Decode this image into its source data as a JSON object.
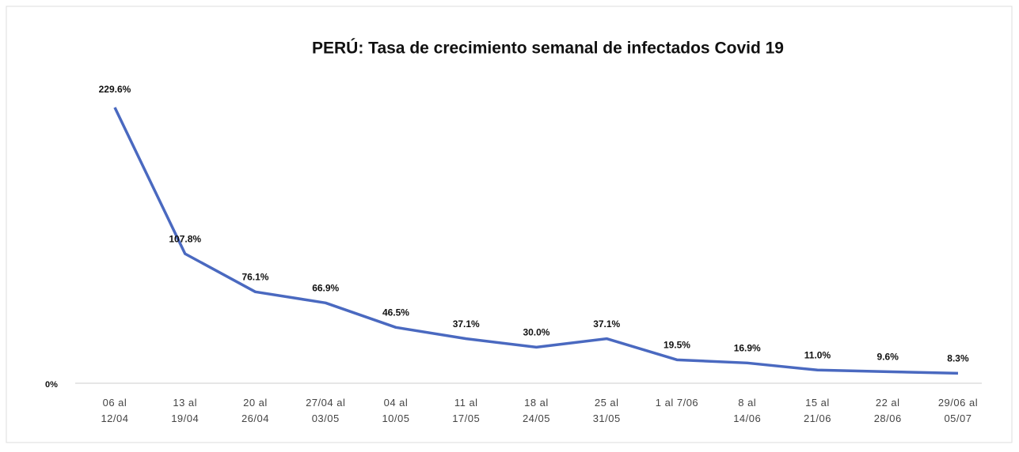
{
  "chart_data": {
    "type": "line",
    "title": "PERÚ: Tasa de crecimiento semanal de infectados Covid 19",
    "categories": [
      "06 al\n12/04",
      "13 al\n19/04",
      "20 al\n26/04",
      "27/04 al\n03/05",
      "04 al\n10/05",
      "11 al\n17/05",
      "18 al\n24/05",
      "25 al\n31/05",
      "1 al 7/06",
      "8 al\n14/06",
      "15 al\n21/06",
      "22 al\n28/06",
      "29/06 al\n05/07"
    ],
    "values": [
      229.6,
      107.8,
      76.1,
      66.9,
      46.5,
      37.1,
      30.0,
      37.1,
      19.5,
      16.9,
      11.0,
      9.6,
      8.3
    ],
    "value_labels": [
      "229.6%",
      "107.8%",
      "76.1%",
      "66.9%",
      "46.5%",
      "37.1%",
      "30.0%",
      "37.1%",
      "19.5%",
      "16.9%",
      "11.0%",
      "9.6%",
      "8.3%"
    ],
    "color": "#4a69c0",
    "ylim": [
      0,
      250
    ],
    "yticks": [
      {
        "value": 0,
        "label": "0%"
      }
    ],
    "grid": false
  }
}
